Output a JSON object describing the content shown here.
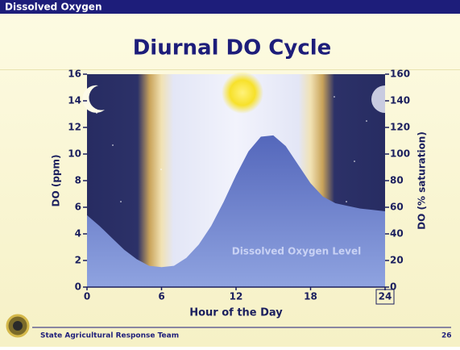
{
  "header": {
    "section": "Dissolved Oxygen"
  },
  "chart_data": {
    "type": "area",
    "title": "Diurnal DO Cycle",
    "x_label": "Hour of  the Day",
    "y_label": "DO (ppm)",
    "y2_label": "DO (% saturation)",
    "annotation": "Dissolved Oxygen Level",
    "x": [
      0,
      1,
      2,
      3,
      4,
      5,
      6,
      7,
      8,
      9,
      10,
      11,
      12,
      13,
      14,
      15,
      16,
      17,
      18,
      19,
      20,
      21,
      22,
      23,
      24
    ],
    "series": [
      {
        "name": "Dissolved Oxygen Level",
        "color": "#6378c8",
        "values": [
          5.4,
          4.6,
          3.7,
          2.8,
          2.1,
          1.6,
          1.5,
          1.6,
          2.2,
          3.2,
          4.6,
          6.4,
          8.4,
          10.2,
          11.3,
          11.4,
          10.6,
          9.2,
          7.8,
          6.8,
          6.3,
          6.1,
          5.9,
          5.8,
          5.7
        ]
      }
    ],
    "xlim": [
      0,
      24
    ],
    "xticks": [
      0,
      6,
      12,
      18,
      24
    ],
    "ylim": [
      0,
      16
    ],
    "yticks": [
      0,
      2,
      4,
      6,
      8,
      10,
      12,
      14,
      16
    ],
    "y2lim": [
      0,
      160
    ],
    "y2ticks": [
      0,
      20,
      40,
      60,
      80,
      100,
      120,
      140,
      160
    ]
  },
  "footer": {
    "organization": "State Agricultural Response Team",
    "page": "26"
  }
}
